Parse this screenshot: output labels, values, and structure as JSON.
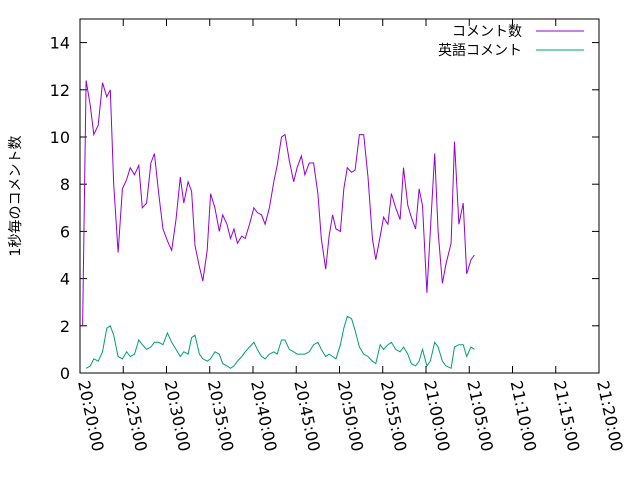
{
  "chart_data": {
    "type": "line",
    "title": "",
    "xlabel": "",
    "ylabel": "1秒毎のコメント数",
    "x_ticks": [
      "20:20:00",
      "20:25:00",
      "20:30:00",
      "20:35:00",
      "20:40:00",
      "20:45:00",
      "20:50:00",
      "20:55:00",
      "21:00:00",
      "21:05:00",
      "21:10:00",
      "21:15:00",
      "21:20:00"
    ],
    "xlim_minutes": [
      0,
      60
    ],
    "ylim": [
      0,
      15
    ],
    "y_ticks": [
      0,
      2,
      4,
      6,
      8,
      10,
      12,
      14
    ],
    "grid": false,
    "legend_position": "top-right",
    "series": [
      {
        "name": "コメント数",
        "color": "#9400d3",
        "points": [
          [
            0.3,
            2.0
          ],
          [
            0.7,
            12.4
          ],
          [
            1.2,
            11.3
          ],
          [
            1.6,
            10.1
          ],
          [
            2.1,
            10.5
          ],
          [
            2.6,
            12.3
          ],
          [
            3.1,
            11.7
          ],
          [
            3.5,
            12.0
          ],
          [
            3.9,
            8.0
          ],
          [
            4.4,
            5.1
          ],
          [
            4.9,
            7.8
          ],
          [
            5.4,
            8.2
          ],
          [
            5.8,
            8.7
          ],
          [
            6.3,
            8.4
          ],
          [
            6.8,
            8.8
          ],
          [
            7.2,
            7.0
          ],
          [
            7.7,
            7.2
          ],
          [
            8.2,
            8.9
          ],
          [
            8.6,
            9.3
          ],
          [
            9.1,
            7.6
          ],
          [
            9.6,
            6.1
          ],
          [
            10.1,
            5.6
          ],
          [
            10.6,
            5.2
          ],
          [
            11.1,
            6.5
          ],
          [
            11.6,
            8.3
          ],
          [
            12.0,
            7.2
          ],
          [
            12.5,
            8.1
          ],
          [
            12.9,
            7.7
          ],
          [
            13.3,
            5.4
          ],
          [
            13.8,
            4.5
          ],
          [
            14.2,
            3.9
          ],
          [
            14.7,
            5.2
          ],
          [
            15.1,
            7.6
          ],
          [
            15.6,
            7.0
          ],
          [
            16.1,
            6.0
          ],
          [
            16.5,
            6.7
          ],
          [
            17.0,
            6.3
          ],
          [
            17.4,
            5.7
          ],
          [
            17.8,
            6.1
          ],
          [
            18.2,
            5.5
          ],
          [
            18.7,
            5.8
          ],
          [
            19.1,
            5.7
          ],
          [
            19.6,
            6.3
          ],
          [
            20.1,
            7.0
          ],
          [
            20.5,
            6.8
          ],
          [
            21.0,
            6.7
          ],
          [
            21.4,
            6.3
          ],
          [
            21.9,
            7.0
          ],
          [
            22.4,
            8.1
          ],
          [
            22.8,
            8.8
          ],
          [
            23.3,
            10.0
          ],
          [
            23.7,
            10.1
          ],
          [
            24.2,
            9.0
          ],
          [
            24.7,
            8.1
          ],
          [
            25.1,
            8.7
          ],
          [
            25.6,
            9.2
          ],
          [
            26.0,
            8.4
          ],
          [
            26.5,
            8.9
          ],
          [
            27.0,
            8.9
          ],
          [
            27.5,
            7.6
          ],
          [
            27.9,
            5.7
          ],
          [
            28.4,
            4.4
          ],
          [
            28.8,
            5.8
          ],
          [
            29.2,
            6.7
          ],
          [
            29.6,
            6.1
          ],
          [
            30.1,
            6.0
          ],
          [
            30.5,
            7.8
          ],
          [
            30.9,
            8.7
          ],
          [
            31.4,
            8.5
          ],
          [
            31.8,
            8.6
          ],
          [
            32.3,
            10.1
          ],
          [
            32.8,
            10.1
          ],
          [
            33.3,
            8.3
          ],
          [
            33.8,
            5.7
          ],
          [
            34.2,
            4.8
          ],
          [
            34.7,
            5.8
          ],
          [
            35.1,
            6.6
          ],
          [
            35.6,
            6.3
          ],
          [
            36.0,
            7.6
          ],
          [
            36.5,
            7.0
          ],
          [
            37.0,
            6.5
          ],
          [
            37.4,
            8.7
          ],
          [
            37.9,
            7.1
          ],
          [
            38.3,
            6.6
          ],
          [
            38.8,
            6.1
          ],
          [
            39.2,
            7.8
          ],
          [
            39.6,
            7.1
          ],
          [
            40.1,
            3.4
          ],
          [
            40.5,
            6.0
          ],
          [
            41.0,
            9.3
          ],
          [
            41.4,
            6.0
          ],
          [
            41.9,
            3.8
          ],
          [
            42.3,
            4.6
          ],
          [
            42.9,
            5.5
          ],
          [
            43.3,
            9.8
          ],
          [
            43.8,
            6.3
          ],
          [
            44.3,
            7.2
          ],
          [
            44.7,
            4.2
          ],
          [
            45.2,
            4.8
          ],
          [
            45.6,
            5.0
          ]
        ]
      },
      {
        "name": "英語コメント",
        "color": "#009e73",
        "points": [
          [
            0.7,
            0.2
          ],
          [
            1.2,
            0.3
          ],
          [
            1.6,
            0.6
          ],
          [
            2.1,
            0.5
          ],
          [
            2.6,
            0.9
          ],
          [
            3.1,
            1.9
          ],
          [
            3.5,
            2.0
          ],
          [
            3.9,
            1.6
          ],
          [
            4.4,
            0.7
          ],
          [
            4.9,
            0.6
          ],
          [
            5.4,
            0.9
          ],
          [
            5.8,
            0.7
          ],
          [
            6.3,
            0.8
          ],
          [
            6.8,
            1.4
          ],
          [
            7.2,
            1.2
          ],
          [
            7.7,
            1.0
          ],
          [
            8.2,
            1.1
          ],
          [
            8.6,
            1.3
          ],
          [
            9.1,
            1.3
          ],
          [
            9.6,
            1.2
          ],
          [
            10.1,
            1.7
          ],
          [
            10.6,
            1.3
          ],
          [
            11.1,
            1.0
          ],
          [
            11.6,
            0.7
          ],
          [
            12.0,
            0.9
          ],
          [
            12.5,
            0.8
          ],
          [
            12.9,
            1.5
          ],
          [
            13.3,
            1.6
          ],
          [
            13.8,
            0.8
          ],
          [
            14.2,
            0.6
          ],
          [
            14.7,
            0.5
          ],
          [
            15.1,
            0.6
          ],
          [
            15.6,
            0.9
          ],
          [
            16.1,
            0.8
          ],
          [
            16.5,
            0.4
          ],
          [
            17.0,
            0.3
          ],
          [
            17.4,
            0.2
          ],
          [
            17.8,
            0.3
          ],
          [
            18.2,
            0.5
          ],
          [
            18.7,
            0.7
          ],
          [
            19.1,
            0.9
          ],
          [
            19.6,
            1.1
          ],
          [
            20.1,
            1.3
          ],
          [
            20.5,
            1.0
          ],
          [
            21.0,
            0.7
          ],
          [
            21.4,
            0.6
          ],
          [
            21.9,
            0.8
          ],
          [
            22.4,
            0.9
          ],
          [
            22.8,
            0.8
          ],
          [
            23.3,
            1.4
          ],
          [
            23.7,
            1.4
          ],
          [
            24.2,
            1.0
          ],
          [
            24.7,
            0.9
          ],
          [
            25.1,
            0.8
          ],
          [
            25.6,
            0.8
          ],
          [
            26.0,
            0.8
          ],
          [
            26.5,
            0.9
          ],
          [
            27.0,
            1.2
          ],
          [
            27.5,
            1.3
          ],
          [
            27.9,
            1.0
          ],
          [
            28.4,
            0.7
          ],
          [
            28.8,
            0.8
          ],
          [
            29.2,
            0.7
          ],
          [
            29.6,
            0.6
          ],
          [
            30.1,
            1.2
          ],
          [
            30.5,
            1.9
          ],
          [
            30.9,
            2.4
          ],
          [
            31.4,
            2.3
          ],
          [
            31.8,
            1.8
          ],
          [
            32.3,
            1.1
          ],
          [
            32.8,
            0.8
          ],
          [
            33.3,
            0.7
          ],
          [
            33.8,
            0.5
          ],
          [
            34.2,
            0.4
          ],
          [
            34.7,
            1.2
          ],
          [
            35.1,
            1.0
          ],
          [
            35.6,
            1.2
          ],
          [
            36.0,
            1.3
          ],
          [
            36.5,
            1.0
          ],
          [
            37.0,
            0.9
          ],
          [
            37.4,
            1.1
          ],
          [
            37.9,
            0.8
          ],
          [
            38.3,
            0.4
          ],
          [
            38.8,
            0.3
          ],
          [
            39.2,
            0.5
          ],
          [
            39.6,
            1.0
          ],
          [
            40.1,
            0.3
          ],
          [
            40.5,
            0.5
          ],
          [
            41.0,
            1.3
          ],
          [
            41.4,
            1.1
          ],
          [
            41.9,
            0.5
          ],
          [
            42.3,
            0.3
          ],
          [
            42.9,
            0.2
          ],
          [
            43.3,
            1.1
          ],
          [
            43.8,
            1.2
          ],
          [
            44.3,
            1.2
          ],
          [
            44.7,
            0.7
          ],
          [
            45.2,
            1.1
          ],
          [
            45.6,
            1.0
          ]
        ]
      }
    ]
  }
}
